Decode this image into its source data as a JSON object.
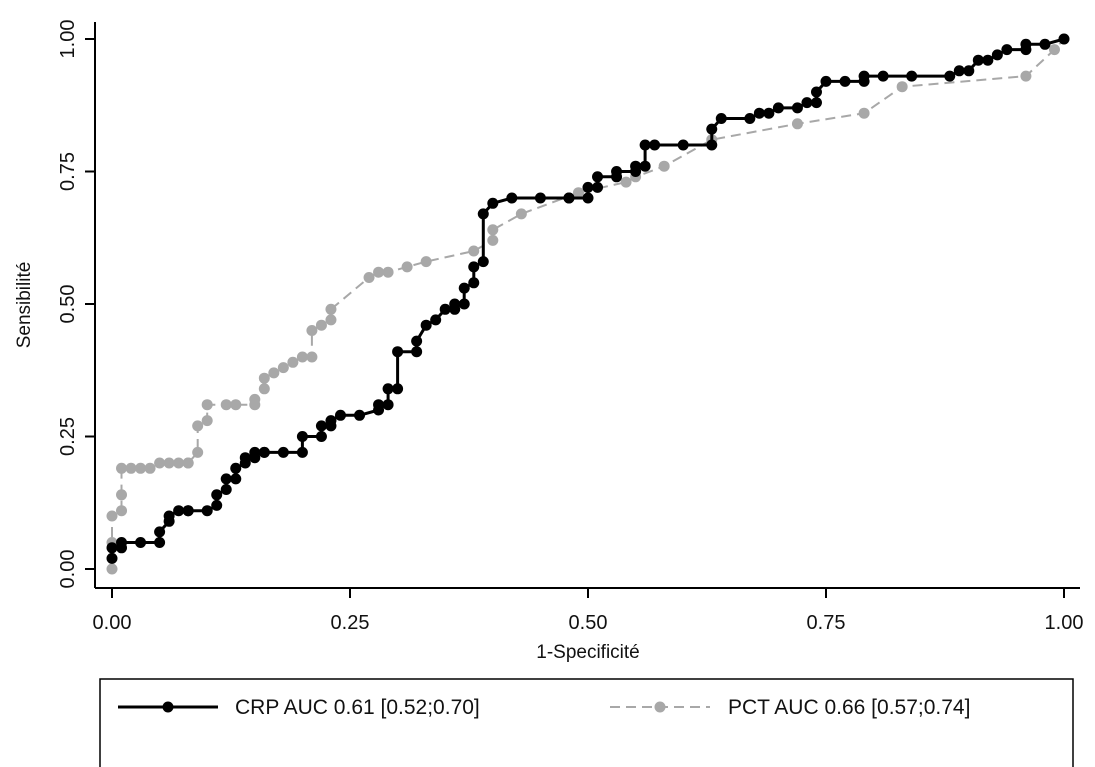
{
  "chart_data": {
    "type": "line",
    "xlabel": "1-Specificité",
    "ylabel": "Sensibilité",
    "xlim": [
      0,
      1
    ],
    "ylim": [
      0,
      1
    ],
    "xticks": [
      "0.00",
      "0.25",
      "0.50",
      "0.75",
      "1.00"
    ],
    "yticks": [
      "0.00",
      "0.25",
      "0.50",
      "0.75",
      "1.00"
    ],
    "grid": false,
    "legend_position": "bottom",
    "series": [
      {
        "name": "CRP AUC 0.61 [0.52;0.70]",
        "color": "#000000",
        "line_style": "solid",
        "x": [
          0.0,
          0.0,
          0.01,
          0.01,
          0.03,
          0.05,
          0.05,
          0.06,
          0.06,
          0.07,
          0.08,
          0.08,
          0.1,
          0.11,
          0.11,
          0.12,
          0.12,
          0.13,
          0.13,
          0.14,
          0.14,
          0.15,
          0.15,
          0.16,
          0.16,
          0.18,
          0.2,
          0.2,
          0.22,
          0.22,
          0.23,
          0.23,
          0.24,
          0.26,
          0.28,
          0.28,
          0.29,
          0.29,
          0.3,
          0.3,
          0.32,
          0.32,
          0.33,
          0.34,
          0.35,
          0.36,
          0.36,
          0.37,
          0.37,
          0.38,
          0.38,
          0.39,
          0.39,
          0.4,
          0.42,
          0.45,
          0.48,
          0.48,
          0.5,
          0.5,
          0.51,
          0.51,
          0.53,
          0.53,
          0.55,
          0.55,
          0.56,
          0.56,
          0.57,
          0.6,
          0.63,
          0.63,
          0.64,
          0.67,
          0.68,
          0.69,
          0.7,
          0.72,
          0.73,
          0.74,
          0.74,
          0.75,
          0.77,
          0.79,
          0.79,
          0.81,
          0.84,
          0.88,
          0.89,
          0.9,
          0.91,
          0.92,
          0.93,
          0.94,
          0.96,
          0.96,
          0.98,
          1.0
        ],
        "y": [
          0.02,
          0.04,
          0.04,
          0.05,
          0.05,
          0.05,
          0.07,
          0.09,
          0.1,
          0.11,
          0.11,
          0.11,
          0.11,
          0.12,
          0.14,
          0.15,
          0.17,
          0.17,
          0.19,
          0.2,
          0.21,
          0.21,
          0.22,
          0.22,
          0.22,
          0.22,
          0.22,
          0.25,
          0.25,
          0.27,
          0.27,
          0.28,
          0.29,
          0.29,
          0.3,
          0.31,
          0.31,
          0.34,
          0.34,
          0.41,
          0.41,
          0.43,
          0.46,
          0.47,
          0.49,
          0.49,
          0.5,
          0.5,
          0.53,
          0.54,
          0.57,
          0.58,
          0.67,
          0.69,
          0.7,
          0.7,
          0.7,
          0.7,
          0.7,
          0.72,
          0.72,
          0.74,
          0.74,
          0.75,
          0.75,
          0.76,
          0.76,
          0.8,
          0.8,
          0.8,
          0.8,
          0.83,
          0.85,
          0.85,
          0.86,
          0.86,
          0.87,
          0.87,
          0.88,
          0.88,
          0.9,
          0.92,
          0.92,
          0.92,
          0.93,
          0.93,
          0.93,
          0.93,
          0.94,
          0.94,
          0.96,
          0.96,
          0.97,
          0.98,
          0.98,
          0.99,
          0.99,
          1.0
        ]
      },
      {
        "name": "PCT AUC 0.66 [0.57;0.74]",
        "color": "#a8a8a8",
        "line_style": "dashed",
        "x": [
          0.0,
          0.0,
          0.0,
          0.01,
          0.01,
          0.01,
          0.02,
          0.03,
          0.04,
          0.05,
          0.06,
          0.07,
          0.08,
          0.08,
          0.09,
          0.09,
          0.1,
          0.1,
          0.12,
          0.13,
          0.15,
          0.15,
          0.16,
          0.16,
          0.17,
          0.18,
          0.19,
          0.2,
          0.21,
          0.21,
          0.22,
          0.23,
          0.23,
          0.27,
          0.28,
          0.29,
          0.31,
          0.33,
          0.38,
          0.4,
          0.4,
          0.43,
          0.49,
          0.54,
          0.55,
          0.58,
          0.63,
          0.72,
          0.79,
          0.83,
          0.96,
          0.99,
          1.0
        ],
        "y": [
          0.0,
          0.05,
          0.1,
          0.11,
          0.14,
          0.19,
          0.19,
          0.19,
          0.19,
          0.2,
          0.2,
          0.2,
          0.2,
          0.2,
          0.22,
          0.27,
          0.28,
          0.31,
          0.31,
          0.31,
          0.31,
          0.32,
          0.34,
          0.36,
          0.37,
          0.38,
          0.39,
          0.4,
          0.4,
          0.45,
          0.46,
          0.47,
          0.49,
          0.55,
          0.56,
          0.56,
          0.57,
          0.58,
          0.6,
          0.62,
          0.64,
          0.67,
          0.71,
          0.73,
          0.74,
          0.76,
          0.81,
          0.84,
          0.86,
          0.91,
          0.93,
          0.98,
          1.0
        ]
      }
    ]
  }
}
